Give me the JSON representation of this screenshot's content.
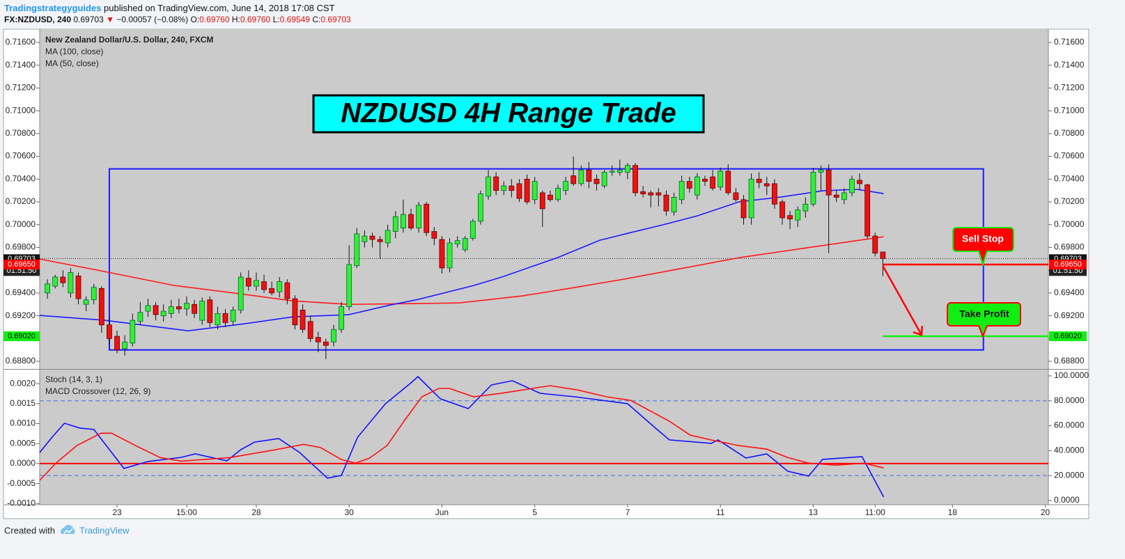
{
  "header": {
    "author": "Tradingstrategyguides",
    "published": "published on TradingView.com, June 14, 2018 17:08 CST",
    "symbol": "FX:NZDUSD, 240",
    "price": "0.69703",
    "arrow": "▼",
    "change": "−0.00057 (−0.08%)",
    "ohlc": [
      {
        "key": "O:",
        "value": "0.69760"
      },
      {
        "key": "H:",
        "value": "0.69760"
      },
      {
        "key": "L:",
        "value": "0.69549"
      },
      {
        "key": "C:",
        "value": "0.69703"
      }
    ]
  },
  "footer": {
    "created": "Created with",
    "brand": "TradingView"
  },
  "chart_data": [
    {
      "type": "candlestick",
      "title": "New Zealand Dollar/U.S. Dollar, 240, FXCM",
      "headline": "NZDUSD 4H Range Trade",
      "up_color": "#33ee33",
      "down_color": "#ee1111",
      "xlim": [
        -1,
        129.4
      ],
      "xticks": [
        {
          "value": 9,
          "label": "23"
        },
        {
          "value": 18,
          "label": "15:00"
        },
        {
          "value": 27,
          "label": "28"
        },
        {
          "value": 39,
          "label": "30"
        },
        {
          "value": 51,
          "label": "Jun"
        },
        {
          "value": 63,
          "label": "5"
        },
        {
          "value": 75,
          "label": "7"
        },
        {
          "value": 87,
          "label": "11"
        },
        {
          "value": 99,
          "label": "13"
        },
        {
          "value": 107,
          "label": "11:00"
        },
        {
          "value": 117,
          "label": "18"
        },
        {
          "value": 129,
          "label": "20"
        }
      ],
      "ylim": [
        0.68733,
        0.71716
      ],
      "yticks": [
        {
          "value": 0.716,
          "label": "0.71600"
        },
        {
          "value": 0.714,
          "label": "0.71400"
        },
        {
          "value": 0.712,
          "label": "0.71200"
        },
        {
          "value": 0.71,
          "label": "0.71000"
        },
        {
          "value": 0.708,
          "label": "0.70800"
        },
        {
          "value": 0.706,
          "label": "0.70600"
        },
        {
          "value": 0.704,
          "label": "0.70400"
        },
        {
          "value": 0.702,
          "label": "0.70200"
        },
        {
          "value": 0.7,
          "label": "0.70000"
        },
        {
          "value": 0.698,
          "label": "0.69800"
        },
        {
          "value": 0.696,
          "label": "0.69600"
        },
        {
          "value": 0.694,
          "label": "0.69400"
        },
        {
          "value": 0.692,
          "label": "0.69200"
        },
        {
          "value": 0.69,
          "label": "0.69000"
        },
        {
          "value": 0.688,
          "label": "0.68800"
        }
      ],
      "open": [
        0.694,
        0.6946,
        0.6954,
        0.694,
        0.6955,
        0.693,
        0.6934,
        0.6944,
        0.6912,
        0.6902,
        0.6891,
        0.6896,
        0.6915,
        0.6924,
        0.6929,
        0.692,
        0.6922,
        0.6928,
        0.6926,
        0.693,
        0.6916,
        0.6934,
        0.6912,
        0.6922,
        0.6915,
        0.6925,
        0.6953,
        0.6946,
        0.695,
        0.6944,
        0.6941,
        0.6949,
        0.6935,
        0.6925,
        0.6915,
        0.6901,
        0.6897,
        0.6897,
        0.6908,
        0.6928,
        0.6964,
        0.6985,
        0.699,
        0.6987,
        0.6984,
        0.6994,
        0.6997,
        0.7009,
        0.6997,
        0.7018,
        0.6994,
        0.6987,
        0.6962,
        0.6983,
        0.6978,
        0.6988,
        0.7003,
        0.7025,
        0.7042,
        0.703,
        0.7034,
        0.7036,
        0.704,
        0.7022,
        0.7028,
        0.7026,
        0.7022,
        0.703,
        0.7043,
        0.7036,
        0.7048,
        0.704,
        0.7034,
        0.7046,
        0.7046,
        0.7046,
        0.7052,
        0.7029,
        0.7028,
        0.7028,
        0.7026,
        0.7011,
        0.7022,
        0.7038,
        0.7026,
        0.704,
        0.7042,
        0.7033,
        0.7047,
        0.7028,
        0.7022,
        0.7006,
        0.704,
        0.7036,
        0.7036,
        0.702,
        0.7008,
        0.7004,
        0.7012,
        0.7018,
        0.7046,
        0.7048,
        0.7026,
        0.7022,
        0.7028,
        0.7039,
        0.7035,
        0.699,
        0.6976
      ],
      "high": [
        0.6952,
        0.6956,
        0.696,
        0.6962,
        0.6958,
        0.6937,
        0.6948,
        0.6946,
        0.6918,
        0.6907,
        0.6903,
        0.6922,
        0.6932,
        0.6935,
        0.6932,
        0.693,
        0.6934,
        0.6935,
        0.6937,
        0.6934,
        0.6936,
        0.6937,
        0.6928,
        0.6926,
        0.6928,
        0.6958,
        0.696,
        0.6958,
        0.6956,
        0.695,
        0.6954,
        0.6952,
        0.6938,
        0.693,
        0.692,
        0.6906,
        0.69,
        0.6912,
        0.6932,
        0.6982,
        0.6997,
        0.6995,
        0.6993,
        0.699,
        0.7,
        0.7012,
        0.7022,
        0.7014,
        0.702,
        0.702,
        0.6998,
        0.699,
        0.6988,
        0.699,
        0.699,
        0.7005,
        0.703,
        0.7048,
        0.7046,
        0.7038,
        0.704,
        0.704,
        0.7044,
        0.7042,
        0.703,
        0.703,
        0.7035,
        0.7042,
        0.706,
        0.7052,
        0.7055,
        0.7044,
        0.7048,
        0.7052,
        0.7057,
        0.7054,
        0.7054,
        0.7034,
        0.703,
        0.7032,
        0.703,
        0.7028,
        0.7043,
        0.7042,
        0.7045,
        0.7043,
        0.7048,
        0.705,
        0.7053,
        0.7032,
        0.7026,
        0.7045,
        0.7046,
        0.7042,
        0.704,
        0.7022,
        0.7012,
        0.7016,
        0.7024,
        0.705,
        0.7052,
        0.7053,
        0.703,
        0.7032,
        0.7043,
        0.7045,
        0.7036,
        0.6993,
        0.6976
      ],
      "low": [
        0.6935,
        0.6944,
        0.6945,
        0.6936,
        0.693,
        0.6924,
        0.693,
        0.6905,
        0.6895,
        0.6887,
        0.6885,
        0.6893,
        0.6912,
        0.6919,
        0.6916,
        0.6915,
        0.6918,
        0.6922,
        0.692,
        0.6918,
        0.6912,
        0.691,
        0.6908,
        0.691,
        0.6912,
        0.6922,
        0.6942,
        0.6942,
        0.694,
        0.6938,
        0.6936,
        0.693,
        0.6908,
        0.6905,
        0.6897,
        0.6888,
        0.6882,
        0.6893,
        0.6905,
        0.6925,
        0.6962,
        0.698,
        0.698,
        0.697,
        0.698,
        0.6988,
        0.6993,
        0.6995,
        0.6993,
        0.699,
        0.6982,
        0.6957,
        0.6958,
        0.698,
        0.6976,
        0.6986,
        0.7,
        0.7022,
        0.7026,
        0.7026,
        0.7024,
        0.702,
        0.7018,
        0.7018,
        0.6998,
        0.702,
        0.702,
        0.7026,
        0.7034,
        0.7034,
        0.7032,
        0.703,
        0.7032,
        0.7043,
        0.7043,
        0.704,
        0.7025,
        0.7024,
        0.7015,
        0.7016,
        0.7008,
        0.7008,
        0.7018,
        0.7028,
        0.7022,
        0.7034,
        0.703,
        0.703,
        0.7026,
        0.702,
        0.7,
        0.7,
        0.7032,
        0.7026,
        0.7014,
        0.7,
        0.6996,
        0.6998,
        0.7006,
        0.7016,
        0.703,
        0.6975,
        0.702,
        0.7018,
        0.7025,
        0.703,
        0.6988,
        0.6972,
        0.69549
      ],
      "close": [
        0.6948,
        0.6954,
        0.6949,
        0.6958,
        0.6935,
        0.6934,
        0.6945,
        0.6912,
        0.69,
        0.689,
        0.6897,
        0.6916,
        0.6923,
        0.6929,
        0.6921,
        0.6924,
        0.6928,
        0.6926,
        0.6931,
        0.6922,
        0.6933,
        0.6914,
        0.6922,
        0.6914,
        0.6925,
        0.6954,
        0.6946,
        0.6951,
        0.6943,
        0.694,
        0.695,
        0.6935,
        0.6912,
        0.6908,
        0.69,
        0.6897,
        0.6894,
        0.6908,
        0.6928,
        0.6965,
        0.6992,
        0.699,
        0.6987,
        0.6985,
        0.6995,
        0.7007,
        0.7009,
        0.6997,
        0.7017,
        0.6993,
        0.6988,
        0.6962,
        0.6984,
        0.6986,
        0.6988,
        0.7003,
        0.7027,
        0.7042,
        0.703,
        0.7034,
        0.703,
        0.7023,
        0.702,
        0.7038,
        0.7014,
        0.7022,
        0.7032,
        0.7038,
        0.7036,
        0.7048,
        0.7038,
        0.7036,
        0.7046,
        0.7047,
        0.7048,
        0.7052,
        0.7028,
        0.7027,
        0.7026,
        0.7026,
        0.7012,
        0.7024,
        0.7038,
        0.7032,
        0.7042,
        0.7038,
        0.7032,
        0.7047,
        0.7028,
        0.7022,
        0.7006,
        0.704,
        0.7037,
        0.7034,
        0.7018,
        0.7006,
        0.7005,
        0.7013,
        0.7018,
        0.7046,
        0.7048,
        0.7026,
        0.7024,
        0.7028,
        0.704,
        0.7036,
        0.699,
        0.6975,
        0.69703
      ],
      "series": [
        {
          "name": "MA (100, close)",
          "color": "#ff1a1a",
          "x": [
            -1,
            7.4,
            16.4,
            23.6,
            31.7,
            38.9,
            47.9,
            53.3,
            61.4,
            68.6,
            75.0,
            82.2,
            89.4,
            97.5,
            108.1
          ],
          "values": [
            0.69698,
            0.69588,
            0.69466,
            0.69404,
            0.69331,
            0.693,
            0.69307,
            0.69313,
            0.69374,
            0.69453,
            0.69527,
            0.69618,
            0.6971,
            0.6979,
            0.69894
          ]
        },
        {
          "name": "MA (50, close)",
          "color": "#1a1aff",
          "x": [
            -1,
            7.4,
            18.2,
            25.4,
            31.7,
            38.9,
            44.3,
            47.9,
            55.1,
            58.7,
            65.9,
            71.4,
            75.0,
            79.5,
            84.0,
            89.4,
            94.8,
            100.2,
            104.7,
            108.1
          ],
          "values": [
            0.69203,
            0.6916,
            0.69068,
            0.69129,
            0.6919,
            0.69209,
            0.69294,
            0.69343,
            0.69466,
            0.69539,
            0.6971,
            0.69863,
            0.69924,
            0.69998,
            0.70077,
            0.702,
            0.70242,
            0.70297,
            0.7031,
            0.70273
          ]
        }
      ],
      "range_box": {
        "x": [
          8,
          121
        ],
        "low": 0.689,
        "high": 0.7049,
        "color": "#1a1aff"
      },
      "sell_stop": {
        "value": 0.6965,
        "label": "0.69650",
        "text": "Sell Stop",
        "color": "#ff0000"
      },
      "take_profit": {
        "value": 0.6902,
        "label": "0.69020",
        "text": "Take Profit",
        "color": "#11ee11"
      },
      "last_price": {
        "value": 0.69703,
        "label": "0.69703"
      },
      "countdown": "01:51:50"
    },
    {
      "type": "line",
      "ylim": [
        -0.00103,
        0.00235
      ],
      "yticks": [
        {
          "value": 0.002,
          "label": "0.0020"
        },
        {
          "value": 0.0015,
          "label": "0.0015"
        },
        {
          "value": 0.001,
          "label": "0.0010"
        },
        {
          "value": 0.0005,
          "label": "0.0005"
        },
        {
          "value": 0,
          "label": "0.0000"
        },
        {
          "value": -0.0005,
          "label": "-0.0005"
        },
        {
          "value": -0.001,
          "label": "-0.0010"
        }
      ],
      "y2lim": [
        -3.4,
        105
      ],
      "y2ticks": [
        {
          "value": 100,
          "label": "100.0000"
        },
        {
          "value": 80,
          "label": "80.0000"
        },
        {
          "value": 60,
          "label": "60.0000"
        },
        {
          "value": 40,
          "label": "40.0000"
        },
        {
          "value": 20,
          "label": "20.0000"
        },
        {
          "value": 0,
          "label": "0.0000"
        }
      ],
      "bands": [
        80,
        20
      ],
      "zero_line": 0,
      "zero_line_color": "#ff0000",
      "series": [
        {
          "name": "Stoch (14, 3, 1)",
          "color": "#1010ff",
          "axis": "y2",
          "x": [
            -1.0,
            0.6,
            2.2,
            4.2,
            6.0,
            8.3,
            9.9,
            13.0,
            17.3,
            19.1,
            23.2,
            25.0,
            26.8,
            29.9,
            32.6,
            36.2,
            38.0,
            40.1,
            43.7,
            47.0,
            47.9,
            50.8,
            54.4,
            57.4,
            60.1,
            63.7,
            68.2,
            75.0,
            78.6,
            80.4,
            85.8,
            86.7,
            90.3,
            93.0,
            95.7,
            98.4,
            100.2,
            105.3,
            108.1
          ],
          "values": [
            38.5,
            50.8,
            62.0,
            58.1,
            57.0,
            38.5,
            25.7,
            31.3,
            34.6,
            37.4,
            31.8,
            40.8,
            46.9,
            49.7,
            38.5,
            17.9,
            20.1,
            50.8,
            77.7,
            94.4,
            99.4,
            81.6,
            73.7,
            92.7,
            96.1,
            86.0,
            83.2,
            77.7,
            58.1,
            48.6,
            45.8,
            48.6,
            34.1,
            37.4,
            23.5,
            19.6,
            33.0,
            35.2,
            2.8
          ]
        },
        {
          "name": "MACD Crossover (12, 26, 9)",
          "color": "#ff1010",
          "x": [
            -1.0,
            1.1,
            3.8,
            6.9,
            8.3,
            11.9,
            14.6,
            17.3,
            23.6,
            29.9,
            33.1,
            35.3,
            38.0,
            39.8,
            41.6,
            43.9,
            46.1,
            48.4,
            50.6,
            52.0,
            55.1,
            58.7,
            65.0,
            68.6,
            72.3,
            75.4,
            80.4,
            83.1,
            85.8,
            89.4,
            93.0,
            95.7,
            98.4,
            102.0,
            105.6,
            108.1
          ],
          "values": [
            -0.00042,
            1e-05,
            0.00045,
            0.00076,
            0.00076,
            0.0004,
            0.00015,
            6e-05,
            0.00015,
            0.00036,
            0.00048,
            0.0004,
            0.0001,
            1e-05,
            0.00013,
            0.00045,
            0.00106,
            0.00167,
            0.00188,
            0.00188,
            0.00167,
            0.00176,
            0.00195,
            0.00184,
            0.00167,
            0.00158,
            0.00106,
            0.00071,
            0.00059,
            0.00045,
            0.00036,
            0.00015,
            1e-05,
            -4e-05,
            1e-05,
            -0.00011
          ]
        }
      ]
    }
  ]
}
